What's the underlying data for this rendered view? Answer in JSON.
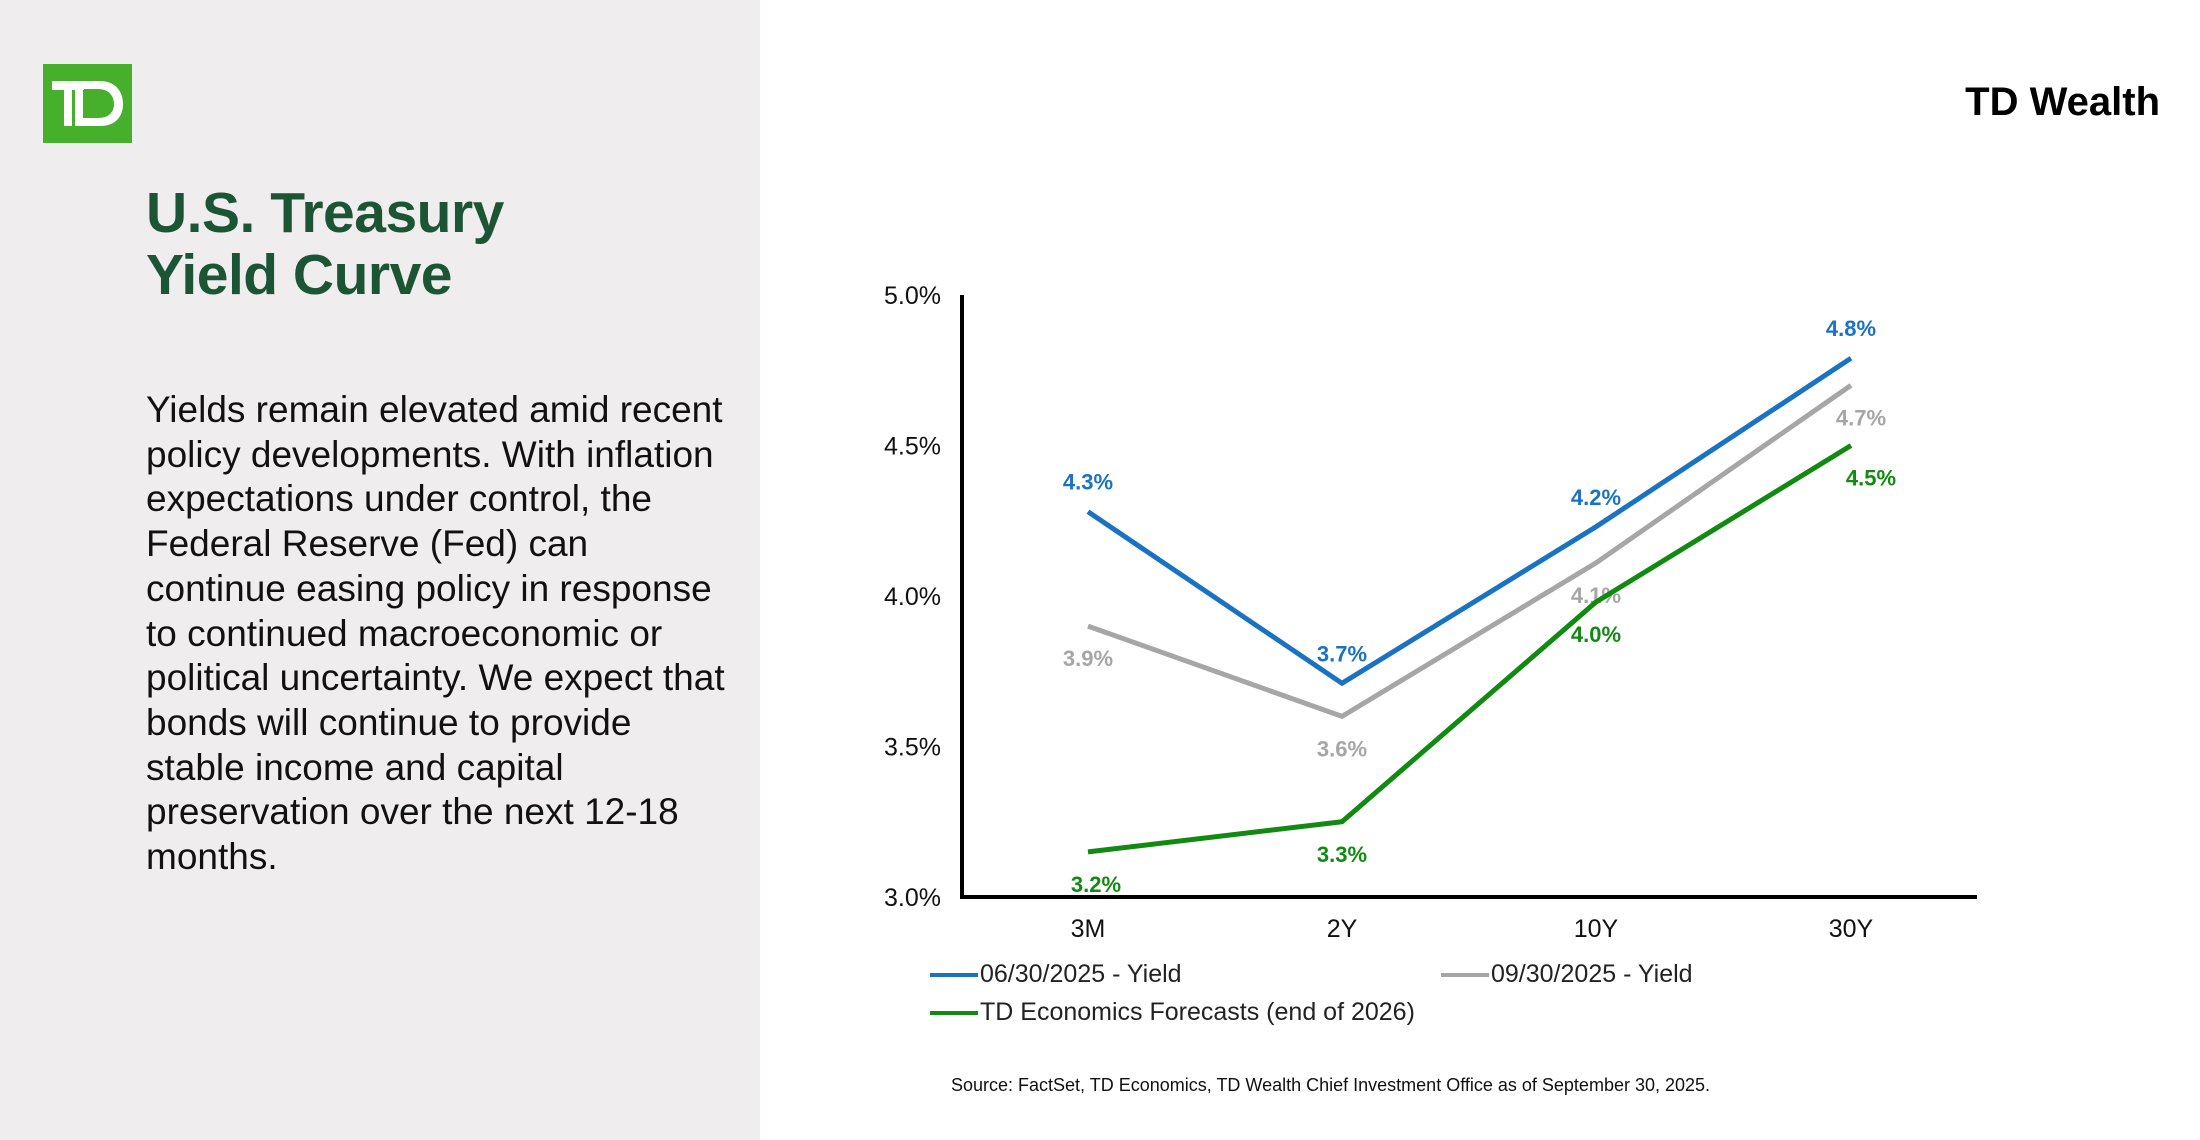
{
  "logo": {
    "text": "TD",
    "color": "#46b02c"
  },
  "brand": "TD Wealth",
  "title_lines": [
    "U.S. Treasury",
    "Yield Curve"
  ],
  "body_text": "Yields remain elevated amid recent policy developments. With inflation expectations under control, the Federal Reserve (Fed) can continue easing policy in response to continued macroeconomic or political uncertainty. We expect that bonds will continue to provide stable income and capital preservation over the next 12-18 months.",
  "source": "Source: FactSet, TD Economics, TD Wealth Chief Investment Office as of September 30, 2025.",
  "chart_data": {
    "type": "line",
    "categories": [
      "3M",
      "2Y",
      "10Y",
      "30Y"
    ],
    "ylim": [
      3.0,
      5.0
    ],
    "yticks": [
      "3.0%",
      "3.5%",
      "4.0%",
      "4.5%",
      "5.0%"
    ],
    "ytick_values": [
      3.0,
      3.5,
      4.0,
      4.5,
      5.0
    ],
    "grid": false,
    "legend_position": "bottom",
    "series": [
      {
        "name": "06/30/2025 - Yield",
        "color": "#1a73c2",
        "values": [
          4.28,
          3.71,
          4.23,
          4.79
        ],
        "labels": [
          "4.3%",
          "3.7%",
          "4.2%",
          "4.8%"
        ],
        "label_side": "above"
      },
      {
        "name": "09/30/2025 - Yield",
        "color": "#a6a6a6",
        "values": [
          3.9,
          3.6,
          4.11,
          4.7
        ],
        "labels": [
          "3.9%",
          "3.6%",
          "4.1%",
          "4.7%"
        ],
        "label_side": "below"
      },
      {
        "name": "TD Economics Forecasts (end of 2026)",
        "color": "#108a10",
        "values": [
          3.15,
          3.25,
          3.98,
          4.5
        ],
        "labels": [
          "3.2%",
          "3.3%",
          "4.0%",
          "4.5%"
        ],
        "label_side": "below"
      }
    ]
  }
}
